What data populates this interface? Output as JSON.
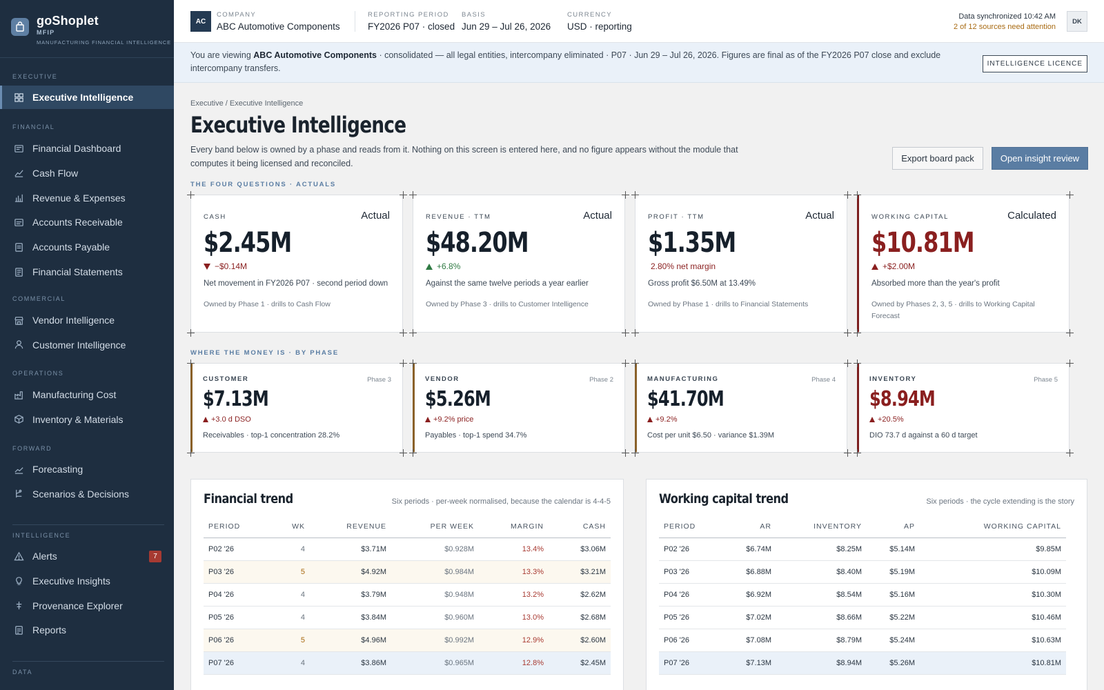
{
  "brand": {
    "name": "goShoplet",
    "short": "MFIP",
    "tagline": "MANUFACTURING FINANCIAL INTELLIGENCE"
  },
  "sidebar": {
    "sections": [
      {
        "label": "EXECUTIVE",
        "items": [
          {
            "label": "Executive Intelligence",
            "icon": "grid-icon",
            "active": true
          }
        ]
      },
      {
        "label": "FINANCIAL",
        "items": [
          {
            "label": "Financial Dashboard",
            "icon": "dashboard-icon"
          },
          {
            "label": "Cash Flow",
            "icon": "line-chart-icon"
          },
          {
            "label": "Revenue & Expenses",
            "icon": "bar-chart-icon"
          },
          {
            "label": "Accounts Receivable",
            "icon": "receivable-icon"
          },
          {
            "label": "Accounts Payable",
            "icon": "payable-icon"
          },
          {
            "label": "Financial Statements",
            "icon": "document-icon"
          }
        ]
      },
      {
        "label": "COMMERCIAL",
        "items": [
          {
            "label": "Vendor Intelligence",
            "icon": "store-icon"
          },
          {
            "label": "Customer Intelligence",
            "icon": "user-icon"
          }
        ]
      },
      {
        "label": "OPERATIONS",
        "items": [
          {
            "label": "Manufacturing Cost",
            "icon": "factory-icon"
          },
          {
            "label": "Inventory & Materials",
            "icon": "box-icon"
          }
        ]
      },
      {
        "label": "FORWARD",
        "items": [
          {
            "label": "Forecasting",
            "icon": "trend-icon"
          },
          {
            "label": "Scenarios & Decisions",
            "icon": "branch-icon"
          }
        ]
      },
      {
        "label": "INTELLIGENCE",
        "items": [
          {
            "label": "Alerts",
            "icon": "alert-icon",
            "badge": "7"
          },
          {
            "label": "Executive Insights",
            "icon": "lightbulb-icon"
          },
          {
            "label": "Provenance Explorer",
            "icon": "pin-icon"
          },
          {
            "label": "Reports",
            "icon": "report-icon"
          }
        ]
      },
      {
        "label": "DATA",
        "items": []
      }
    ]
  },
  "topbar": {
    "company_initials": "AC",
    "company_label": "COMPANY",
    "company": "ABC Automotive Components",
    "period_label": "REPORTING PERIOD",
    "period": "FY2026 P07 · closed",
    "basis_label": "BASIS",
    "basis": "Jun 29 – Jul 26, 2026",
    "currency_label": "CURRENCY",
    "currency": "USD · reporting",
    "sync_status": "Data synchronized 10:42 AM",
    "sync_warning": "2 of 12 sources need attention",
    "user_initials": "DK"
  },
  "banner": {
    "prefix": "You are viewing ",
    "company": "ABC Automotive Components",
    "suffix": " · consolidated — all legal entities, intercompany eliminated · P07 · Jun 29 – Jul 26, 2026. Figures are final as of the FY2026 P07 close and exclude intercompany transfers.",
    "licence": "INTELLIGENCE LICENCE"
  },
  "page": {
    "breadcrumb": "Executive / Executive Intelligence",
    "title": "Executive Intelligence",
    "description": "Every band below is owned by a phase and reads from it. Nothing on this screen is entered here, and no figure appears without the module that computes it being licensed and reconciled.",
    "export_label": "Export board pack",
    "open_label": "Open insight review"
  },
  "four_questions": {
    "label": "THE FOUR QUESTIONS · ACTUALS",
    "cards": [
      {
        "label": "CASH",
        "type": "Actual",
        "value": "$2.45M",
        "direction": "down",
        "tone": "neg",
        "delta": "−$0.14M",
        "note": "Net movement in FY2026 P07 · second period down",
        "owner": "Owned by Phase 1 · drills to Cash Flow"
      },
      {
        "label": "REVENUE · TTM",
        "type": "Actual",
        "value": "$48.20M",
        "direction": "up",
        "tone": "pos",
        "delta": "+6.8%",
        "note": "Against the same twelve periods a year earlier",
        "owner": "Owned by Phase 3 · drills to Customer Intelligence"
      },
      {
        "label": "PROFIT · TTM",
        "type": "Actual",
        "value": "$1.35M",
        "direction": "none",
        "tone": "neg",
        "delta": "2.80% net margin",
        "note": "Gross profit $6.50M at 13.49%",
        "owner": "Owned by Phase 1 · drills to Financial Statements"
      },
      {
        "label": "WORKING CAPITAL",
        "type": "Calculated",
        "value": "$10.81M",
        "direction": "up",
        "tone": "neg",
        "delta": "+$2.00M",
        "note": "Absorbed more than the year's profit",
        "owner": "Owned by Phases 2, 3, 5 · drills to Working Capital Forecast",
        "alert": true
      }
    ]
  },
  "by_phase": {
    "label": "WHERE THE MONEY IS · BY PHASE",
    "cards": [
      {
        "label": "CUSTOMER",
        "phase": "Phase 3",
        "value": "$7.13M",
        "delta": "+3.0 d DSO",
        "note": "Receivables · top-1 concentration 28.2%"
      },
      {
        "label": "VENDOR",
        "phase": "Phase 2",
        "value": "$5.26M",
        "delta": "+9.2% price",
        "note": "Payables · top-1 spend 34.7%"
      },
      {
        "label": "MANUFACTURING",
        "phase": "Phase 4",
        "value": "$41.70M",
        "delta": "+9.2%",
        "note": "Cost per unit $6.50 · variance $1.39M"
      },
      {
        "label": "INVENTORY",
        "phase": "Phase 5",
        "value": "$8.94M",
        "delta": "+20.5%",
        "note": "DIO 73.7 d against a 60 d target",
        "alert": true
      }
    ]
  },
  "financial_trend": {
    "title": "Financial trend",
    "subtitle": "Six periods · per-week normalised, because the calendar is 4-4-5",
    "columns": [
      "PERIOD",
      "WK",
      "REVENUE",
      "PER WEEK",
      "MARGIN",
      "CASH"
    ],
    "rows": [
      [
        "P02 '26",
        "4",
        "$3.71M",
        "$0.928M",
        "13.4%",
        "$3.06M"
      ],
      [
        "P03 '26",
        "5",
        "$4.92M",
        "$0.984M",
        "13.3%",
        "$3.21M"
      ],
      [
        "P04 '26",
        "4",
        "$3.79M",
        "$0.948M",
        "13.2%",
        "$2.62M"
      ],
      [
        "P05 '26",
        "4",
        "$3.84M",
        "$0.960M",
        "13.0%",
        "$2.68M"
      ],
      [
        "P06 '26",
        "5",
        "$4.96M",
        "$0.992M",
        "12.9%",
        "$2.60M"
      ],
      [
        "P07 '26",
        "4",
        "$3.86M",
        "$0.965M",
        "12.8%",
        "$2.45M"
      ]
    ]
  },
  "wc_trend": {
    "title": "Working capital trend",
    "subtitle": "Six periods · the cycle extending is the story",
    "columns": [
      "PERIOD",
      "AR",
      "INVENTORY",
      "AP",
      "WORKING CAPITAL"
    ],
    "rows": [
      [
        "P02 '26",
        "$6.74M",
        "$8.25M",
        "$5.14M",
        "$9.85M"
      ],
      [
        "P03 '26",
        "$6.88M",
        "$8.40M",
        "$5.19M",
        "$10.09M"
      ],
      [
        "P04 '26",
        "$6.92M",
        "$8.54M",
        "$5.16M",
        "$10.30M"
      ],
      [
        "P05 '26",
        "$7.02M",
        "$8.66M",
        "$5.22M",
        "$10.46M"
      ],
      [
        "P06 '26",
        "$7.08M",
        "$8.79M",
        "$5.24M",
        "$10.63M"
      ],
      [
        "P07 '26",
        "$7.13M",
        "$8.94M",
        "$5.26M",
        "$10.81M"
      ]
    ]
  },
  "colors": {
    "sidebar": "#1e2e40",
    "accent": "#5a7da3",
    "negative": "#8a1f1f",
    "positive": "#2f7a43",
    "phase_bar": "#8a6129"
  }
}
